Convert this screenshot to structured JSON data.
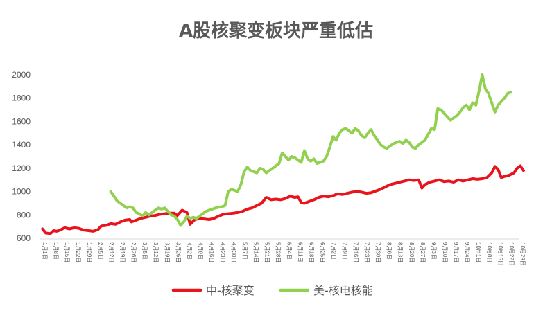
{
  "chart_data": {
    "type": "line",
    "title": "A股核聚变板块严重低估",
    "xlabel": "",
    "ylabel": "",
    "ylim": [
      600,
      2000
    ],
    "yticks": [
      600,
      800,
      1000,
      1200,
      1400,
      1600,
      1800,
      2000
    ],
    "grid": false,
    "legend": "bottom",
    "x_tick_labels": [
      "1月1日",
      "1月8日",
      "1月15日",
      "1月22日",
      "1月29日",
      "2月5日",
      "2月12日",
      "2月19日",
      "2月26日",
      "3月5日",
      "3月12日",
      "3月19日",
      "3月26日",
      "4月2日",
      "4月9日",
      "4月16日",
      "4月23日",
      "4月30日",
      "5月7日",
      "5月14日",
      "5月21日",
      "5月28日",
      "6月4日",
      "6月11日",
      "6月18日",
      "6月25日",
      "7月2日",
      "7月9日",
      "7月16日",
      "7月23日",
      "7月30日",
      "8月6日",
      "8月13日",
      "8月20日",
      "8月27日",
      "9月3日",
      "9月10日",
      "9月17日",
      "9月24日",
      "10月1日",
      "10月8日",
      "10月15日",
      "10月22日",
      "10月29日"
    ],
    "series": [
      {
        "name": "中-核聚变",
        "color": "#e8141c",
        "points": [
          [
            1,
            680
          ],
          [
            3,
            645
          ],
          [
            6,
            640
          ],
          [
            8,
            665
          ],
          [
            10,
            660
          ],
          [
            12,
            670
          ],
          [
            15,
            690
          ],
          [
            18,
            680
          ],
          [
            21,
            690
          ],
          [
            24,
            685
          ],
          [
            27,
            670
          ],
          [
            30,
            665
          ],
          [
            33,
            660
          ],
          [
            36,
            675
          ],
          [
            38,
            705
          ],
          [
            41,
            710
          ],
          [
            44,
            725
          ],
          [
            47,
            720
          ],
          [
            50,
            740
          ],
          [
            53,
            755
          ],
          [
            56,
            760
          ],
          [
            57,
            740
          ],
          [
            60,
            755
          ],
          [
            63,
            770
          ],
          [
            66,
            780
          ],
          [
            69,
            790
          ],
          [
            72,
            795
          ],
          [
            75,
            805
          ],
          [
            78,
            810
          ],
          [
            81,
            815
          ],
          [
            84,
            815
          ],
          [
            86,
            795
          ],
          [
            89,
            840
          ],
          [
            92,
            820
          ],
          [
            94,
            720
          ],
          [
            97,
            760
          ],
          [
            100,
            770
          ],
          [
            103,
            765
          ],
          [
            106,
            760
          ],
          [
            109,
            770
          ],
          [
            112,
            790
          ],
          [
            115,
            805
          ],
          [
            118,
            810
          ],
          [
            121,
            815
          ],
          [
            124,
            820
          ],
          [
            127,
            830
          ],
          [
            130,
            850
          ],
          [
            133,
            860
          ],
          [
            136,
            880
          ],
          [
            139,
            900
          ],
          [
            142,
            950
          ],
          [
            145,
            930
          ],
          [
            148,
            935
          ],
          [
            151,
            930
          ],
          [
            154,
            940
          ],
          [
            157,
            960
          ],
          [
            160,
            950
          ],
          [
            162,
            955
          ],
          [
            164,
            905
          ],
          [
            166,
            900
          ],
          [
            169,
            915
          ],
          [
            172,
            930
          ],
          [
            175,
            950
          ],
          [
            178,
            960
          ],
          [
            181,
            955
          ],
          [
            184,
            965
          ],
          [
            187,
            980
          ],
          [
            190,
            975
          ],
          [
            193,
            985
          ],
          [
            196,
            995
          ],
          [
            199,
            1000
          ],
          [
            202,
            995
          ],
          [
            205,
            985
          ],
          [
            208,
            990
          ],
          [
            211,
            1005
          ],
          [
            214,
            1020
          ],
          [
            217,
            1040
          ],
          [
            220,
            1060
          ],
          [
            223,
            1070
          ],
          [
            226,
            1080
          ],
          [
            229,
            1090
          ],
          [
            232,
            1100
          ],
          [
            235,
            1095
          ],
          [
            238,
            1100
          ],
          [
            240,
            1030
          ],
          [
            242,
            1060
          ],
          [
            245,
            1080
          ],
          [
            248,
            1090
          ],
          [
            251,
            1100
          ],
          [
            254,
            1085
          ],
          [
            257,
            1090
          ],
          [
            260,
            1080
          ],
          [
            263,
            1100
          ],
          [
            266,
            1090
          ],
          [
            269,
            1100
          ],
          [
            272,
            1110
          ],
          [
            275,
            1105
          ],
          [
            278,
            1110
          ],
          [
            281,
            1120
          ],
          [
            284,
            1160
          ],
          [
            286,
            1215
          ],
          [
            288,
            1190
          ],
          [
            290,
            1120
          ],
          [
            292,
            1130
          ],
          [
            295,
            1140
          ],
          [
            298,
            1160
          ],
          [
            300,
            1200
          ],
          [
            302,
            1220
          ],
          [
            304,
            1180
          ]
        ]
      },
      {
        "name": "美-核电核能",
        "color": "#92d050",
        "points": [
          [
            44,
            1000
          ],
          [
            46,
            960
          ],
          [
            48,
            920
          ],
          [
            50,
            900
          ],
          [
            52,
            880
          ],
          [
            54,
            860
          ],
          [
            56,
            870
          ],
          [
            58,
            860
          ],
          [
            60,
            820
          ],
          [
            62,
            810
          ],
          [
            64,
            790
          ],
          [
            66,
            820
          ],
          [
            68,
            800
          ],
          [
            70,
            820
          ],
          [
            72,
            840
          ],
          [
            74,
            860
          ],
          [
            76,
            850
          ],
          [
            78,
            860
          ],
          [
            80,
            830
          ],
          [
            82,
            800
          ],
          [
            84,
            790
          ],
          [
            86,
            760
          ],
          [
            88,
            710
          ],
          [
            90,
            740
          ],
          [
            92,
            790
          ],
          [
            94,
            770
          ],
          [
            96,
            780
          ],
          [
            98,
            770
          ],
          [
            100,
            790
          ],
          [
            102,
            810
          ],
          [
            104,
            830
          ],
          [
            106,
            840
          ],
          [
            108,
            850
          ],
          [
            110,
            860
          ],
          [
            112,
            865
          ],
          [
            114,
            870
          ],
          [
            116,
            880
          ],
          [
            118,
            1000
          ],
          [
            120,
            1020
          ],
          [
            122,
            1010
          ],
          [
            124,
            1000
          ],
          [
            126,
            1060
          ],
          [
            128,
            1170
          ],
          [
            130,
            1210
          ],
          [
            132,
            1180
          ],
          [
            134,
            1170
          ],
          [
            136,
            1160
          ],
          [
            138,
            1200
          ],
          [
            140,
            1190
          ],
          [
            142,
            1160
          ],
          [
            144,
            1180
          ],
          [
            146,
            1200
          ],
          [
            148,
            1220
          ],
          [
            150,
            1240
          ],
          [
            152,
            1330
          ],
          [
            154,
            1300
          ],
          [
            156,
            1270
          ],
          [
            158,
            1300
          ],
          [
            160,
            1290
          ],
          [
            162,
            1270
          ],
          [
            164,
            1250
          ],
          [
            166,
            1350
          ],
          [
            168,
            1280
          ],
          [
            170,
            1260
          ],
          [
            172,
            1280
          ],
          [
            174,
            1240
          ],
          [
            176,
            1250
          ],
          [
            178,
            1260
          ],
          [
            180,
            1300
          ],
          [
            182,
            1380
          ],
          [
            184,
            1470
          ],
          [
            186,
            1440
          ],
          [
            188,
            1500
          ],
          [
            190,
            1530
          ],
          [
            192,
            1540
          ],
          [
            194,
            1520
          ],
          [
            196,
            1500
          ],
          [
            198,
            1540
          ],
          [
            200,
            1520
          ],
          [
            202,
            1480
          ],
          [
            204,
            1460
          ],
          [
            206,
            1500
          ],
          [
            208,
            1530
          ],
          [
            210,
            1480
          ],
          [
            212,
            1440
          ],
          [
            214,
            1400
          ],
          [
            216,
            1380
          ],
          [
            218,
            1370
          ],
          [
            220,
            1390
          ],
          [
            222,
            1410
          ],
          [
            224,
            1420
          ],
          [
            226,
            1430
          ],
          [
            228,
            1410
          ],
          [
            230,
            1440
          ],
          [
            232,
            1420
          ],
          [
            234,
            1380
          ],
          [
            236,
            1370
          ],
          [
            238,
            1400
          ],
          [
            240,
            1420
          ],
          [
            242,
            1440
          ],
          [
            244,
            1490
          ],
          [
            246,
            1540
          ],
          [
            248,
            1530
          ],
          [
            250,
            1710
          ],
          [
            252,
            1700
          ],
          [
            254,
            1670
          ],
          [
            256,
            1640
          ],
          [
            258,
            1610
          ],
          [
            260,
            1630
          ],
          [
            262,
            1650
          ],
          [
            264,
            1680
          ],
          [
            266,
            1720
          ],
          [
            268,
            1740
          ],
          [
            270,
            1700
          ],
          [
            272,
            1760
          ],
          [
            274,
            1740
          ],
          [
            276,
            1860
          ],
          [
            278,
            2000
          ],
          [
            280,
            1880
          ],
          [
            282,
            1840
          ],
          [
            284,
            1760
          ],
          [
            286,
            1680
          ],
          [
            288,
            1740
          ],
          [
            290,
            1770
          ],
          [
            292,
            1800
          ],
          [
            294,
            1840
          ],
          [
            296,
            1850
          ]
        ]
      }
    ]
  }
}
